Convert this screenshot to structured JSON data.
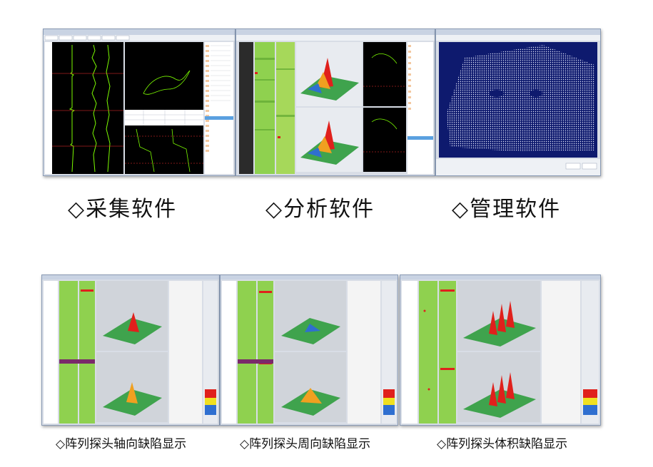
{
  "top_row": {
    "items": [
      {
        "label": "◇采集软件"
      },
      {
        "label": "◇分析软件"
      },
      {
        "label": "◇管理软件"
      }
    ]
  },
  "bottom_row": {
    "items": [
      {
        "label": "◇阵列探头轴向缺陷显示"
      },
      {
        "label": "◇阵列探头周向缺陷显示"
      },
      {
        "label": "◇阵列探头体积缺陷显示"
      }
    ]
  },
  "colors": {
    "acquisition_bg": "#000000",
    "trace_green": "#7cfc00",
    "management_bg": "#0e1a6e",
    "cscan_green": "#8fd14f",
    "surface_green": "#3fa34d",
    "peak_red": "#e0201c",
    "window_chrome": "#d8dde6"
  },
  "icons": {
    "diamond_bullet": "diamond-outline-icon"
  }
}
